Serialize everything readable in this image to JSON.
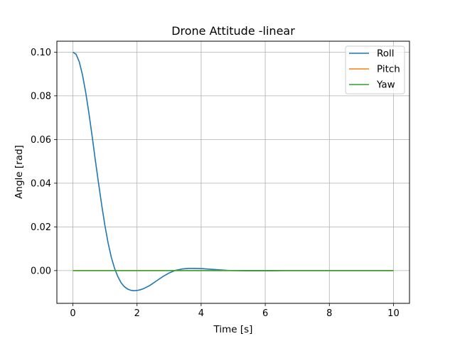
{
  "chart_data": {
    "type": "line",
    "title": "Drone Attitude -linear",
    "xlabel": "Time [s]",
    "ylabel": "Angle [rad]",
    "xlim": [
      -0.5,
      10.5
    ],
    "ylim": [
      -0.015,
      0.105
    ],
    "xticks": [
      0,
      2,
      4,
      6,
      8,
      10
    ],
    "xtick_labels": [
      "0",
      "2",
      "4",
      "6",
      "8",
      "10"
    ],
    "yticks": [
      0.0,
      0.02,
      0.04,
      0.06,
      0.08,
      0.1
    ],
    "ytick_labels": [
      "0.00",
      "0.02",
      "0.04",
      "0.06",
      "0.08",
      "0.10"
    ],
    "grid": true,
    "legend_position": "top-right",
    "series": [
      {
        "name": "Roll",
        "color": "#1f77b4",
        "x": [
          0,
          0.1,
          0.2,
          0.3,
          0.4,
          0.5,
          0.6,
          0.7,
          0.8,
          0.9,
          1.0,
          1.1,
          1.2,
          1.3,
          1.4,
          1.5,
          1.6,
          1.7,
          1.8,
          1.9,
          2.0,
          2.1,
          2.2,
          2.4,
          2.6,
          2.8,
          3.0,
          3.2,
          3.4,
          3.6,
          3.8,
          4.0,
          4.2,
          4.4,
          4.6,
          4.8,
          5.0,
          5.4,
          5.8,
          6.2,
          6.6,
          7.0,
          8.0,
          9.0,
          10.0
        ],
        "y": [
          0.1,
          0.099,
          0.0955,
          0.0895,
          0.0815,
          0.072,
          0.0615,
          0.0505,
          0.04,
          0.0298,
          0.0205,
          0.0125,
          0.006,
          0.001,
          -0.0027,
          -0.0055,
          -0.0073,
          -0.0084,
          -0.009,
          -0.0092,
          -0.0091,
          -0.0088,
          -0.0083,
          -0.0068,
          -0.0048,
          -0.0028,
          -0.0011,
          0.0001,
          0.0007,
          0.001,
          0.001,
          0.0009,
          0.0007,
          0.0005,
          0.0003,
          0.0001,
          0.0,
          -0.0001,
          -0.0001,
          -0.0001,
          0.0,
          0.0,
          0.0,
          0.0,
          0.0
        ]
      },
      {
        "name": "Pitch",
        "color": "#ff7f0e",
        "x": [
          0,
          10
        ],
        "y": [
          0.0,
          0.0
        ]
      },
      {
        "name": "Yaw",
        "color": "#2ca02c",
        "x": [
          0,
          10
        ],
        "y": [
          0.0,
          0.0
        ]
      }
    ]
  }
}
